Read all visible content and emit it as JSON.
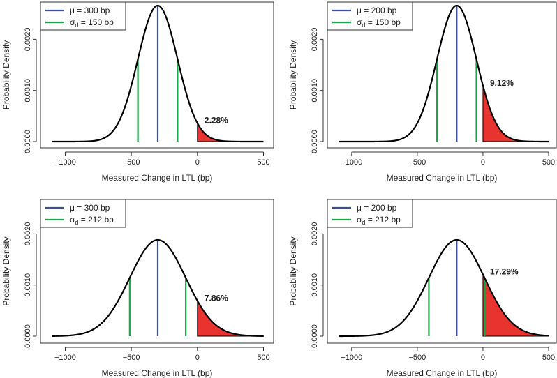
{
  "figure": {
    "colors": {
      "mean_line": "#3b4f9a",
      "sd_line": "#1aa64a",
      "shade": "#e8332e",
      "curve": "#000000",
      "axis": "#333333"
    }
  },
  "chart_data": [
    {
      "type": "line",
      "panel": "top-left",
      "title": "",
      "xlabel": "Measured Change in LTL (bp)",
      "ylabel": "Probability Density",
      "xlim": [
        -1100,
        500
      ],
      "ylim": [
        0,
        0.00266
      ],
      "xticks": [
        -1000,
        -500,
        0,
        500
      ],
      "xtick_labels": [
        "−1000",
        "−500",
        "0",
        "500"
      ],
      "yticks": [
        0,
        0.001,
        0.002
      ],
      "ytick_labels": [
        "0.0000",
        "0.0010",
        "0.0020"
      ],
      "mu": -300,
      "sigma_d": 150,
      "legend": [
        {
          "symbol": "μ",
          "text": " = 300 bp",
          "color": "#3b4f9a"
        },
        {
          "symbol": "σ",
          "sub": "d",
          "text": " = 150 bp",
          "color": "#1aa64a"
        }
      ],
      "legend_position": "top-left",
      "shaded_region": [
        0,
        500
      ],
      "annotation": "2.28%"
    },
    {
      "type": "line",
      "panel": "top-right",
      "title": "",
      "xlabel": "Measured Change in LTL (bp)",
      "ylabel": "Probability Density",
      "xlim": [
        -1100,
        500
      ],
      "ylim": [
        0,
        0.00266
      ],
      "xticks": [
        -1000,
        -500,
        0,
        500
      ],
      "xtick_labels": [
        "−1000",
        "−500",
        "0",
        "500"
      ],
      "yticks": [
        0,
        0.001,
        0.002
      ],
      "ytick_labels": [
        "0.0000",
        "0.0010",
        "0.0020"
      ],
      "mu": -200,
      "sigma_d": 150,
      "legend": [
        {
          "symbol": "μ",
          "text": " = 200 bp",
          "color": "#3b4f9a"
        },
        {
          "symbol": "σ",
          "sub": "d",
          "text": " = 150 bp",
          "color": "#1aa64a"
        }
      ],
      "legend_position": "top-left",
      "shaded_region": [
        0,
        500
      ],
      "annotation": "9.12%"
    },
    {
      "type": "line",
      "panel": "bottom-left",
      "title": "",
      "xlabel": "Measured Change in LTL (bp)",
      "ylabel": "Probability Density",
      "xlim": [
        -1100,
        500
      ],
      "ylim": [
        0,
        0.00266
      ],
      "xticks": [
        -1000,
        -500,
        0,
        500
      ],
      "xtick_labels": [
        "−1000",
        "−500",
        "0",
        "500"
      ],
      "yticks": [
        0,
        0.001,
        0.002
      ],
      "ytick_labels": [
        "0.0000",
        "0.0010",
        "0.0020"
      ],
      "mu": -300,
      "sigma_d": 212,
      "legend": [
        {
          "symbol": "μ",
          "text": " = 300 bp",
          "color": "#3b4f9a"
        },
        {
          "symbol": "σ",
          "sub": "d",
          "text": " = 212 bp",
          "color": "#1aa64a"
        }
      ],
      "legend_position": "top-left",
      "shaded_region": [
        0,
        500
      ],
      "annotation": "7.86%"
    },
    {
      "type": "line",
      "panel": "bottom-right",
      "title": "",
      "xlabel": "Measured Change in LTL (bp)",
      "ylabel": "Probability Density",
      "xlim": [
        -1100,
        500
      ],
      "ylim": [
        0,
        0.00266
      ],
      "xticks": [
        -1000,
        -500,
        0,
        500
      ],
      "xtick_labels": [
        "−1000",
        "−500",
        "0",
        "500"
      ],
      "yticks": [
        0,
        0.001,
        0.002
      ],
      "ytick_labels": [
        "0.0000",
        "0.0010",
        "0.0020"
      ],
      "mu": -200,
      "sigma_d": 212,
      "legend": [
        {
          "symbol": "μ",
          "text": " = 200 bp",
          "color": "#3b4f9a"
        },
        {
          "symbol": "σ",
          "sub": "d",
          "text": " = 212 bp",
          "color": "#1aa64a"
        }
      ],
      "legend_position": "top-left",
      "shaded_region": [
        0,
        500
      ],
      "annotation": "17.29%"
    }
  ]
}
